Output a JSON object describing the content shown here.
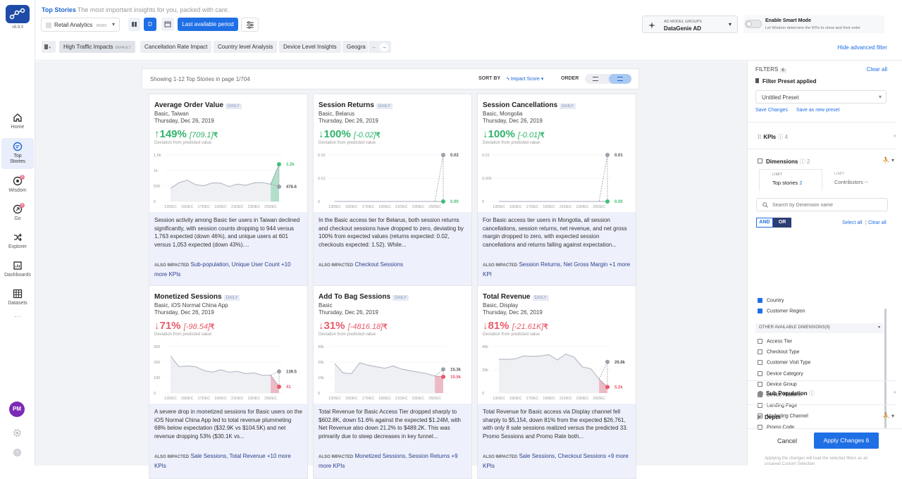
{
  "app": {
    "version": "v8.9.0"
  },
  "nav": [
    {
      "label": "Home",
      "icon": "home-icon"
    },
    {
      "label": "Top Stories",
      "icon": "top-stories-icon"
    },
    {
      "label": "Wisdom",
      "icon": "wisdom-icon",
      "badge": "5"
    },
    {
      "label": "Go",
      "icon": "go-icon",
      "badge": "5"
    },
    {
      "label": "Explorer",
      "icon": "explorer-icon"
    },
    {
      "label": "Dashboards",
      "icon": "dashboards-icon"
    },
    {
      "label": "Datasets",
      "icon": "datasets-icon"
    }
  ],
  "user": {
    "initials": "PM"
  },
  "header": {
    "title": "Top Stories",
    "subtitle": "The most important insights for you, packed with care.",
    "workspace": "Retail Analytics",
    "workspace_tag": "DEMO",
    "granularity": "D",
    "period_button": "Last available period",
    "model_group_label": "AD MODEL GROUPS",
    "model_group_value": "DataGenie AD",
    "smart_mode_title": "Enable Smart Mode",
    "smart_mode_desc": "Let Wisdom determine the KPIs to show and their order",
    "hide_filters": "Hide advanced filter"
  },
  "presets": [
    {
      "label": "High Traffic Impacts",
      "tag": "DEFAULT"
    },
    {
      "label": "Cancellation Rate Impact"
    },
    {
      "label": "Country level Analysis"
    },
    {
      "label": "Device Level Insights"
    },
    {
      "label": "Geogra"
    }
  ],
  "summary": {
    "showing": "Showing 1-12 Top Stories in page 1/704",
    "sort_by": "SORT BY",
    "sort_value": "Impact Score",
    "order": "ORDER"
  },
  "cards": [
    {
      "title": "Average Order Value",
      "tag": "DAILY",
      "segment": "Basic, Taiwan",
      "date": "Thursday, Dec 26, 2019",
      "arrow": "↑",
      "pct": "149%",
      "dev": "[709.1]",
      "dev_label": "Deviation from predicted value",
      "tone": "green",
      "yticks": [
        "1.5k",
        "1k",
        "500",
        "0"
      ],
      "ymax": 1500,
      "expected": "476.6",
      "actual": "1.2k",
      "text": "Session activity among Basic tier users in Taiwan declined significantly, with session counts dropping to 944 versus 1,763 expected (down 46%), and unique users at 601 versus 1,053 expected (down 43%)....",
      "also_label": "ALSO IMPACTED",
      "also": "Sub-population, Unique User Count +10 more KPIs"
    },
    {
      "title": "Session Returns",
      "tag": "DAILY",
      "segment": "Basic, Belarus",
      "date": "Thursday, Dec 26, 2019",
      "arrow": "↓",
      "pct": "100%",
      "dev": "[-0.02]",
      "dev_label": "Deviation from predicted value",
      "tone": "green",
      "yticks": [
        "0.02",
        "0.01",
        "0"
      ],
      "ymax": 0.02,
      "expected": "0.02",
      "actual": "0.00",
      "text": "In the Basic access tier for Belarus, both session returns and checkout sessions have dropped to zero, deviating by 100% from expected values (returns expected: 0.02, checkouts expected: 1.52). While...",
      "also_label": "ALSO IMPACTED",
      "also": "Checkout Sessions"
    },
    {
      "title": "Session Cancellations",
      "tag": "DAILY",
      "segment": "Basic, Mongolia",
      "date": "Thursday, Dec 26, 2019",
      "arrow": "↓",
      "pct": "100%",
      "dev": "[-0.01]",
      "dev_label": "Deviation from predicted value",
      "tone": "green",
      "yticks": [
        "0.01",
        "0.005",
        "0"
      ],
      "ymax": 0.01,
      "expected": "0.01",
      "actual": "0.00",
      "text": "For Basic access tier users in Mongolia, all session cancellations, session returns, net revenue, and net gross margin dropped to zero, with expected session cancellations and returns falling against expectation...",
      "also_label": "ALSO IMPACTED",
      "also": "Session Returns, Net Gross Margin +1 more KPI"
    },
    {
      "title": "Monetized Sessions",
      "tag": "DAILY",
      "segment": "Basic, iOS Normal China App",
      "date": "Thursday, Dec 26, 2019",
      "arrow": "↓",
      "pct": "71%",
      "dev": "[-98.54]",
      "dev_label": "Deviation from predicted value",
      "tone": "red",
      "yticks": [
        "300",
        "200",
        "100",
        "0"
      ],
      "ymax": 300,
      "expected": "139.5",
      "actual": "41",
      "text": "A severe drop in monetized sessions for Basic users on the iOS Normal China App led to total revenue plummeting 68% below expectation ($32.9K vs $104.5K) and net revenue dropping 53% ($30.1K vs...",
      "also_label": "ALSO IMPACTED",
      "also": "Sale Sessions, Total Revenue +10 more KPIs"
    },
    {
      "title": "Add To Bag Sessions",
      "tag": "DAILY",
      "segment": "Basic",
      "date": "Thursday, Dec 26, 2019",
      "arrow": "↓",
      "pct": "31%",
      "dev": "[-4816.18]",
      "dev_label": "Deviation from predicted value",
      "tone": "red",
      "yticks": [
        "30k",
        "20k",
        "10k",
        "0"
      ],
      "ymax": 30000,
      "expected": "15.3k",
      "actual": "10.5k",
      "text": "Total Revenue for Basic Access Tier dropped sharply to $602.8K, down 51.6% against the expected $1.24M, with Net Revenue also down 21.2% to $489.2K. This was primarily due to steep decreases in key funnel...",
      "also_label": "ALSO IMPACTED",
      "also": "Monetized Sessions, Session Returns +9 more KPIs"
    },
    {
      "title": "Total Revenue",
      "tag": "DAILY",
      "segment": "Basic, Display",
      "date": "Thursday, Dec 26, 2019",
      "arrow": "↓",
      "pct": "81%",
      "dev": "[-21.61K]",
      "dev_label": "Deviation from predicted value",
      "tone": "red",
      "yticks": [
        "40k",
        "20k",
        "0"
      ],
      "ymax": 40000,
      "expected": "26.8k",
      "actual": "5.2k",
      "text": "Total Revenue for Basic access via Display channel fell sharply to $5,154, down 81% from the expected $26,761, with only 8 sale sessions realized versus the predicted 33. Promo Sessions and Promo Rate both...",
      "also_label": "ALSO IMPACTED",
      "also": "Sale Sessions, Checkout Sessions +9 more KPIs"
    }
  ],
  "xticks": [
    "13DEC",
    "15DEC",
    "17DEC",
    "19DEC",
    "21DEC",
    "23DEC",
    "25DEC"
  ],
  "chart_data": [
    {
      "type": "line",
      "x": [
        "13DEC",
        "14DEC",
        "15DEC",
        "16DEC",
        "17DEC",
        "18DEC",
        "19DEC",
        "20DEC",
        "21DEC",
        "22DEC",
        "23DEC",
        "24DEC",
        "25DEC",
        "26DEC"
      ],
      "values": [
        420,
        600,
        690,
        540,
        510,
        600,
        590,
        480,
        560,
        520,
        600,
        610,
        560,
        1200
      ],
      "expected_last": 476.6
    },
    {
      "type": "line",
      "x": [
        "13DEC",
        "14DEC",
        "15DEC",
        "16DEC",
        "17DEC",
        "18DEC",
        "19DEC",
        "20DEC",
        "21DEC",
        "22DEC",
        "23DEC",
        "24DEC",
        "25DEC",
        "26DEC"
      ],
      "values": [
        0,
        0,
        0,
        0,
        0,
        0,
        0,
        0,
        0,
        0,
        0,
        0,
        0,
        0
      ],
      "expected_last": 0.02
    },
    {
      "type": "line",
      "x": [
        "13DEC",
        "14DEC",
        "15DEC",
        "16DEC",
        "17DEC",
        "18DEC",
        "19DEC",
        "20DEC",
        "21DEC",
        "22DEC",
        "23DEC",
        "24DEC",
        "25DEC",
        "26DEC"
      ],
      "values": [
        0,
        0,
        0,
        0,
        0,
        0,
        0,
        0,
        0,
        0,
        0,
        0,
        0,
        0
      ],
      "expected_last": 0.01
    },
    {
      "type": "line",
      "x": [
        "13DEC",
        "14DEC",
        "15DEC",
        "16DEC",
        "17DEC",
        "18DEC",
        "19DEC",
        "20DEC",
        "21DEC",
        "22DEC",
        "23DEC",
        "24DEC",
        "25DEC",
        "26DEC"
      ],
      "values": [
        240,
        170,
        175,
        170,
        145,
        135,
        150,
        135,
        140,
        125,
        130,
        115,
        115,
        41
      ],
      "expected_last": 139.5
    },
    {
      "type": "line",
      "x": [
        "13DEC",
        "14DEC",
        "15DEC",
        "16DEC",
        "17DEC",
        "18DEC",
        "19DEC",
        "20DEC",
        "21DEC",
        "22DEC",
        "23DEC",
        "24DEC",
        "25DEC",
        "26DEC"
      ],
      "values": [
        19000,
        13000,
        12500,
        19500,
        18000,
        17000,
        16000,
        17500,
        15500,
        14500,
        13500,
        12500,
        11000,
        10500
      ],
      "expected_last": 15300
    },
    {
      "type": "line",
      "x": [
        "13DEC",
        "14DEC",
        "15DEC",
        "16DEC",
        "17DEC",
        "18DEC",
        "19DEC",
        "20DEC",
        "21DEC",
        "22DEC",
        "23DEC",
        "24DEC",
        "25DEC",
        "26DEC"
      ],
      "values": [
        29000,
        29000,
        29500,
        32000,
        31500,
        32000,
        33000,
        28500,
        33500,
        31000,
        22500,
        21000,
        12000,
        5200
      ],
      "expected_last": 26800
    }
  ],
  "filters": {
    "title": "FILTERS",
    "count": "6",
    "clear_all": "Clear all",
    "preset_applied": "Filter Preset applied",
    "preset_value": "Untitled Preset",
    "save_changes": "Save Changes",
    "save_new": "Save as new preset",
    "kpis_label": "KPIs",
    "kpis_count": "4",
    "dimensions_label": "Dimensions",
    "dimensions_count": "2",
    "limit_label": "LIMIT",
    "limit_stories": "Top stories",
    "limit_stories_val": "2",
    "limit_contrib": "Contributors",
    "limit_contrib_val": "--",
    "search_placeholder": "Search by Dimension name",
    "and": "AND",
    "or": "OR",
    "select_all": "Select all",
    "clear_all_dims": "Clear all",
    "selected": [
      "Country",
      "Customer Region"
    ],
    "other_label": "OTHER AVAILABLE DIMENSIONS(9)",
    "others": [
      "Access Tier",
      "Checkout Type",
      "Customer Visit Type",
      "Device Category",
      "Device Group",
      "Device Platform",
      "Landing Page",
      "Marketing Channel",
      "Promo Code"
    ],
    "sub_population": "Sub Population",
    "depth": "Depth",
    "cancel": "Cancel",
    "apply": "Apply Changes 6",
    "footer_note": "Applying the changes will load the selected filters as an unsaved Custom Selection"
  }
}
